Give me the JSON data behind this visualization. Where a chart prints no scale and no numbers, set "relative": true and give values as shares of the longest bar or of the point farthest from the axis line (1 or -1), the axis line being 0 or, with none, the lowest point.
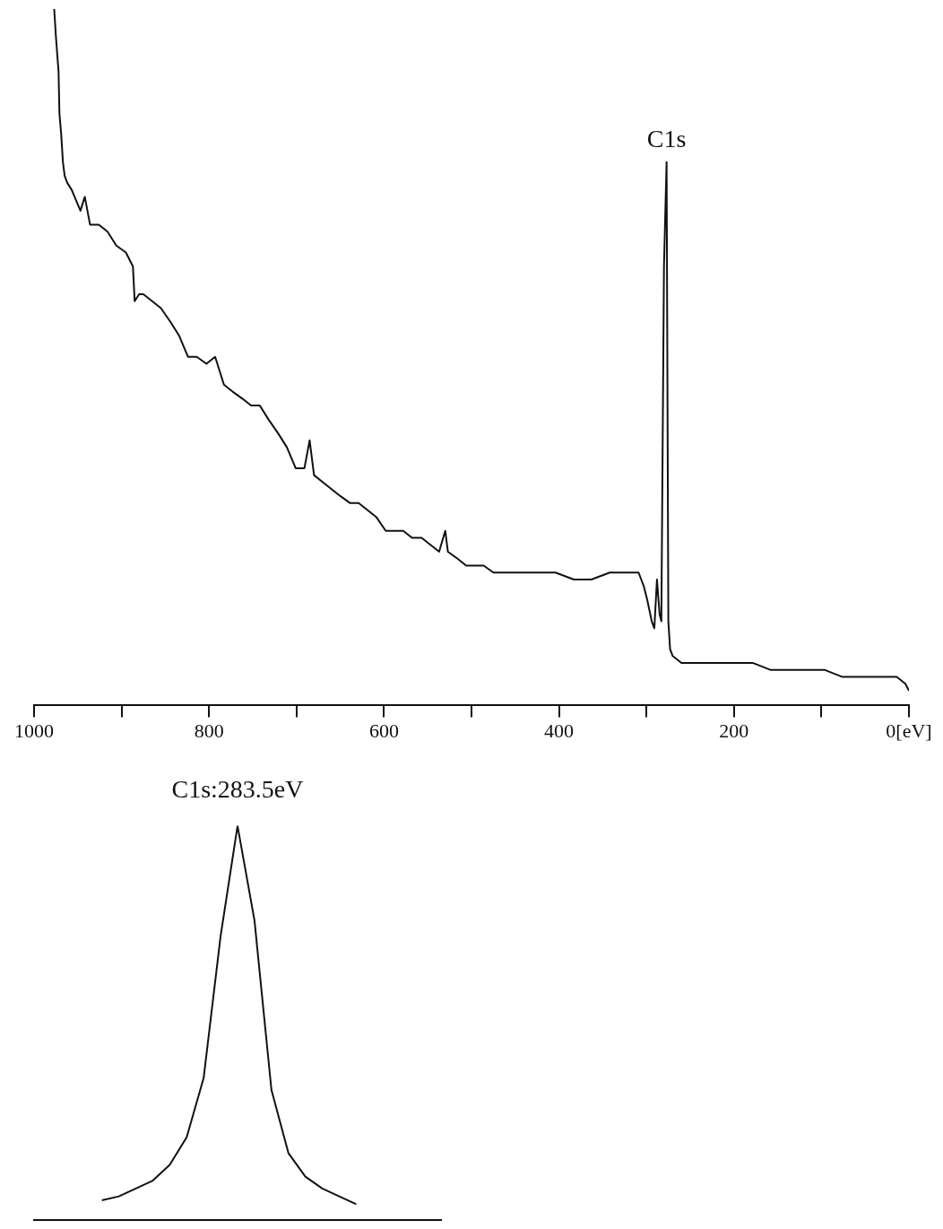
{
  "chart_data": [
    {
      "type": "line",
      "relative": true,
      "color": "#111111",
      "marker": "none",
      "line_style": "solid",
      "tick_labels": "x",
      "grid": false,
      "legend": false,
      "xlim": [
        1000,
        0
      ],
      "xticks": [
        1000,
        {
          "value": 900,
          "label": null
        },
        800,
        {
          "value": 700,
          "label": null
        },
        600,
        {
          "value": 500,
          "label": null
        },
        400,
        {
          "value": 300,
          "label": null
        },
        200,
        {
          "value": 100,
          "label": null
        },
        {
          "value": 0,
          "label": "0[eV]"
        }
      ],
      "x": [
        977,
        975,
        972,
        971,
        969,
        967,
        965,
        962,
        957,
        947,
        942,
        936,
        926,
        916,
        906,
        895,
        887,
        885,
        880,
        875,
        865,
        855,
        844,
        834,
        824,
        814,
        803,
        793,
        783,
        773,
        762,
        752,
        742,
        732,
        721,
        711,
        701,
        691,
        685,
        680,
        670,
        660,
        650,
        639,
        629,
        619,
        609,
        598,
        588,
        578,
        568,
        557,
        547,
        537,
        530,
        527,
        516,
        506,
        496,
        486,
        475,
        465,
        445,
        424,
        404,
        383,
        363,
        342,
        322,
        309,
        303,
        299,
        294,
        291,
        288,
        285,
        283,
        280,
        277,
        275,
        273,
        270,
        260,
        240,
        219,
        199,
        178,
        158,
        137,
        117,
        96,
        76,
        55,
        35,
        14,
        4,
        0
      ],
      "values": [
        1,
        0.96,
        0.91,
        0.85,
        0.82,
        0.78,
        0.76,
        0.75,
        0.74,
        0.71,
        0.73,
        0.69,
        0.69,
        0.68,
        0.66,
        0.65,
        0.63,
        0.58,
        0.59,
        0.59,
        0.58,
        0.57,
        0.55,
        0.53,
        0.5,
        0.5,
        0.49,
        0.5,
        0.46,
        0.45,
        0.44,
        0.43,
        0.43,
        0.41,
        0.39,
        0.37,
        0.34,
        0.34,
        0.38,
        0.33,
        0.32,
        0.31,
        0.3,
        0.29,
        0.29,
        0.28,
        0.27,
        0.25,
        0.25,
        0.25,
        0.24,
        0.24,
        0.23,
        0.22,
        0.25,
        0.22,
        0.21,
        0.2,
        0.2,
        0.2,
        0.19,
        0.19,
        0.19,
        0.19,
        0.19,
        0.18,
        0.18,
        0.19,
        0.19,
        0.19,
        0.17,
        0.15,
        0.12,
        0.11,
        0.18,
        0.13,
        0.12,
        0.63,
        0.78,
        0.12,
        0.08,
        0.07,
        0.06,
        0.06,
        0.06,
        0.06,
        0.06,
        0.05,
        0.05,
        0.05,
        0.05,
        0.04,
        0.04,
        0.04,
        0.04,
        0.03,
        0.02
      ],
      "annotations": [
        {
          "text": "C1s",
          "x": 277,
          "y": 0.78
        }
      ]
    },
    {
      "type": "line",
      "relative": true,
      "color": "#111111",
      "marker": "none",
      "line_style": "solid",
      "tick_labels": false,
      "grid": false,
      "legend": false,
      "title": "C1s:283.5eV",
      "categories": [
        null,
        null,
        null,
        null,
        null,
        null,
        null,
        null,
        null,
        null,
        null,
        null,
        null,
        null,
        null,
        null,
        null,
        null,
        null,
        null,
        null,
        null,
        null,
        null,
        null
      ],
      "values": [
        null,
        null,
        null,
        null,
        0.05,
        0.06,
        0.08,
        0.1,
        0.14,
        0.21,
        0.36,
        0.72,
        1,
        0.76,
        0.33,
        0.17,
        0.11,
        0.08,
        0.06,
        0.04,
        null,
        null,
        null,
        null,
        null
      ]
    }
  ]
}
